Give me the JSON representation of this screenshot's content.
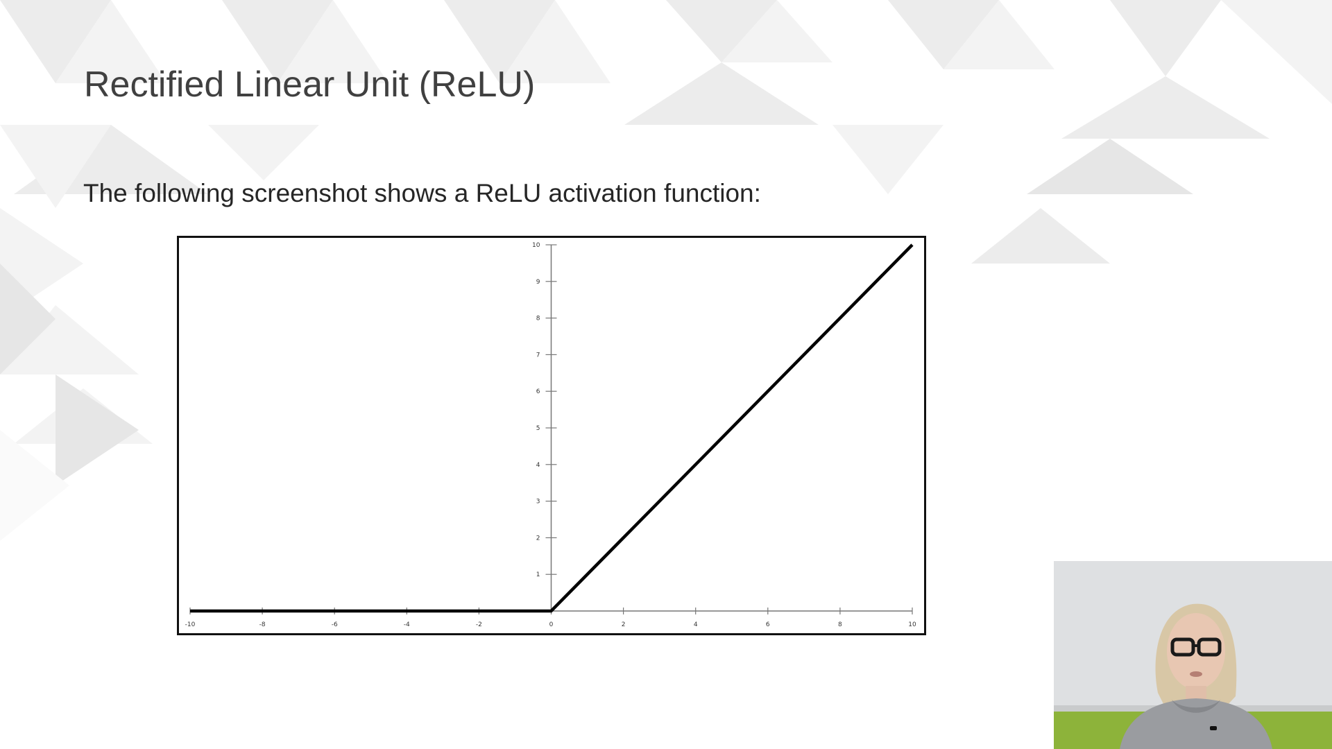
{
  "slide": {
    "title": "Rectified Linear Unit (ReLU)",
    "body_text": "The following screenshot shows a ReLU activation function:"
  },
  "chart_data": {
    "type": "line",
    "title": "",
    "xlabel": "",
    "ylabel": "",
    "xlim": [
      -10,
      10
    ],
    "ylim": [
      0,
      10
    ],
    "x_ticks": [
      -10,
      -8,
      -6,
      -4,
      -2,
      0,
      2,
      4,
      6,
      8,
      10
    ],
    "y_ticks": [
      1,
      2,
      3,
      4,
      5,
      6,
      7,
      8,
      9,
      10
    ],
    "grid": false,
    "legend": "none",
    "series": [
      {
        "x": [
          -10,
          0,
          10
        ],
        "y": [
          0,
          0,
          10
        ]
      }
    ]
  },
  "webcam": {
    "wall_color": "#d9dadc",
    "accent_color": "#8db33a"
  }
}
